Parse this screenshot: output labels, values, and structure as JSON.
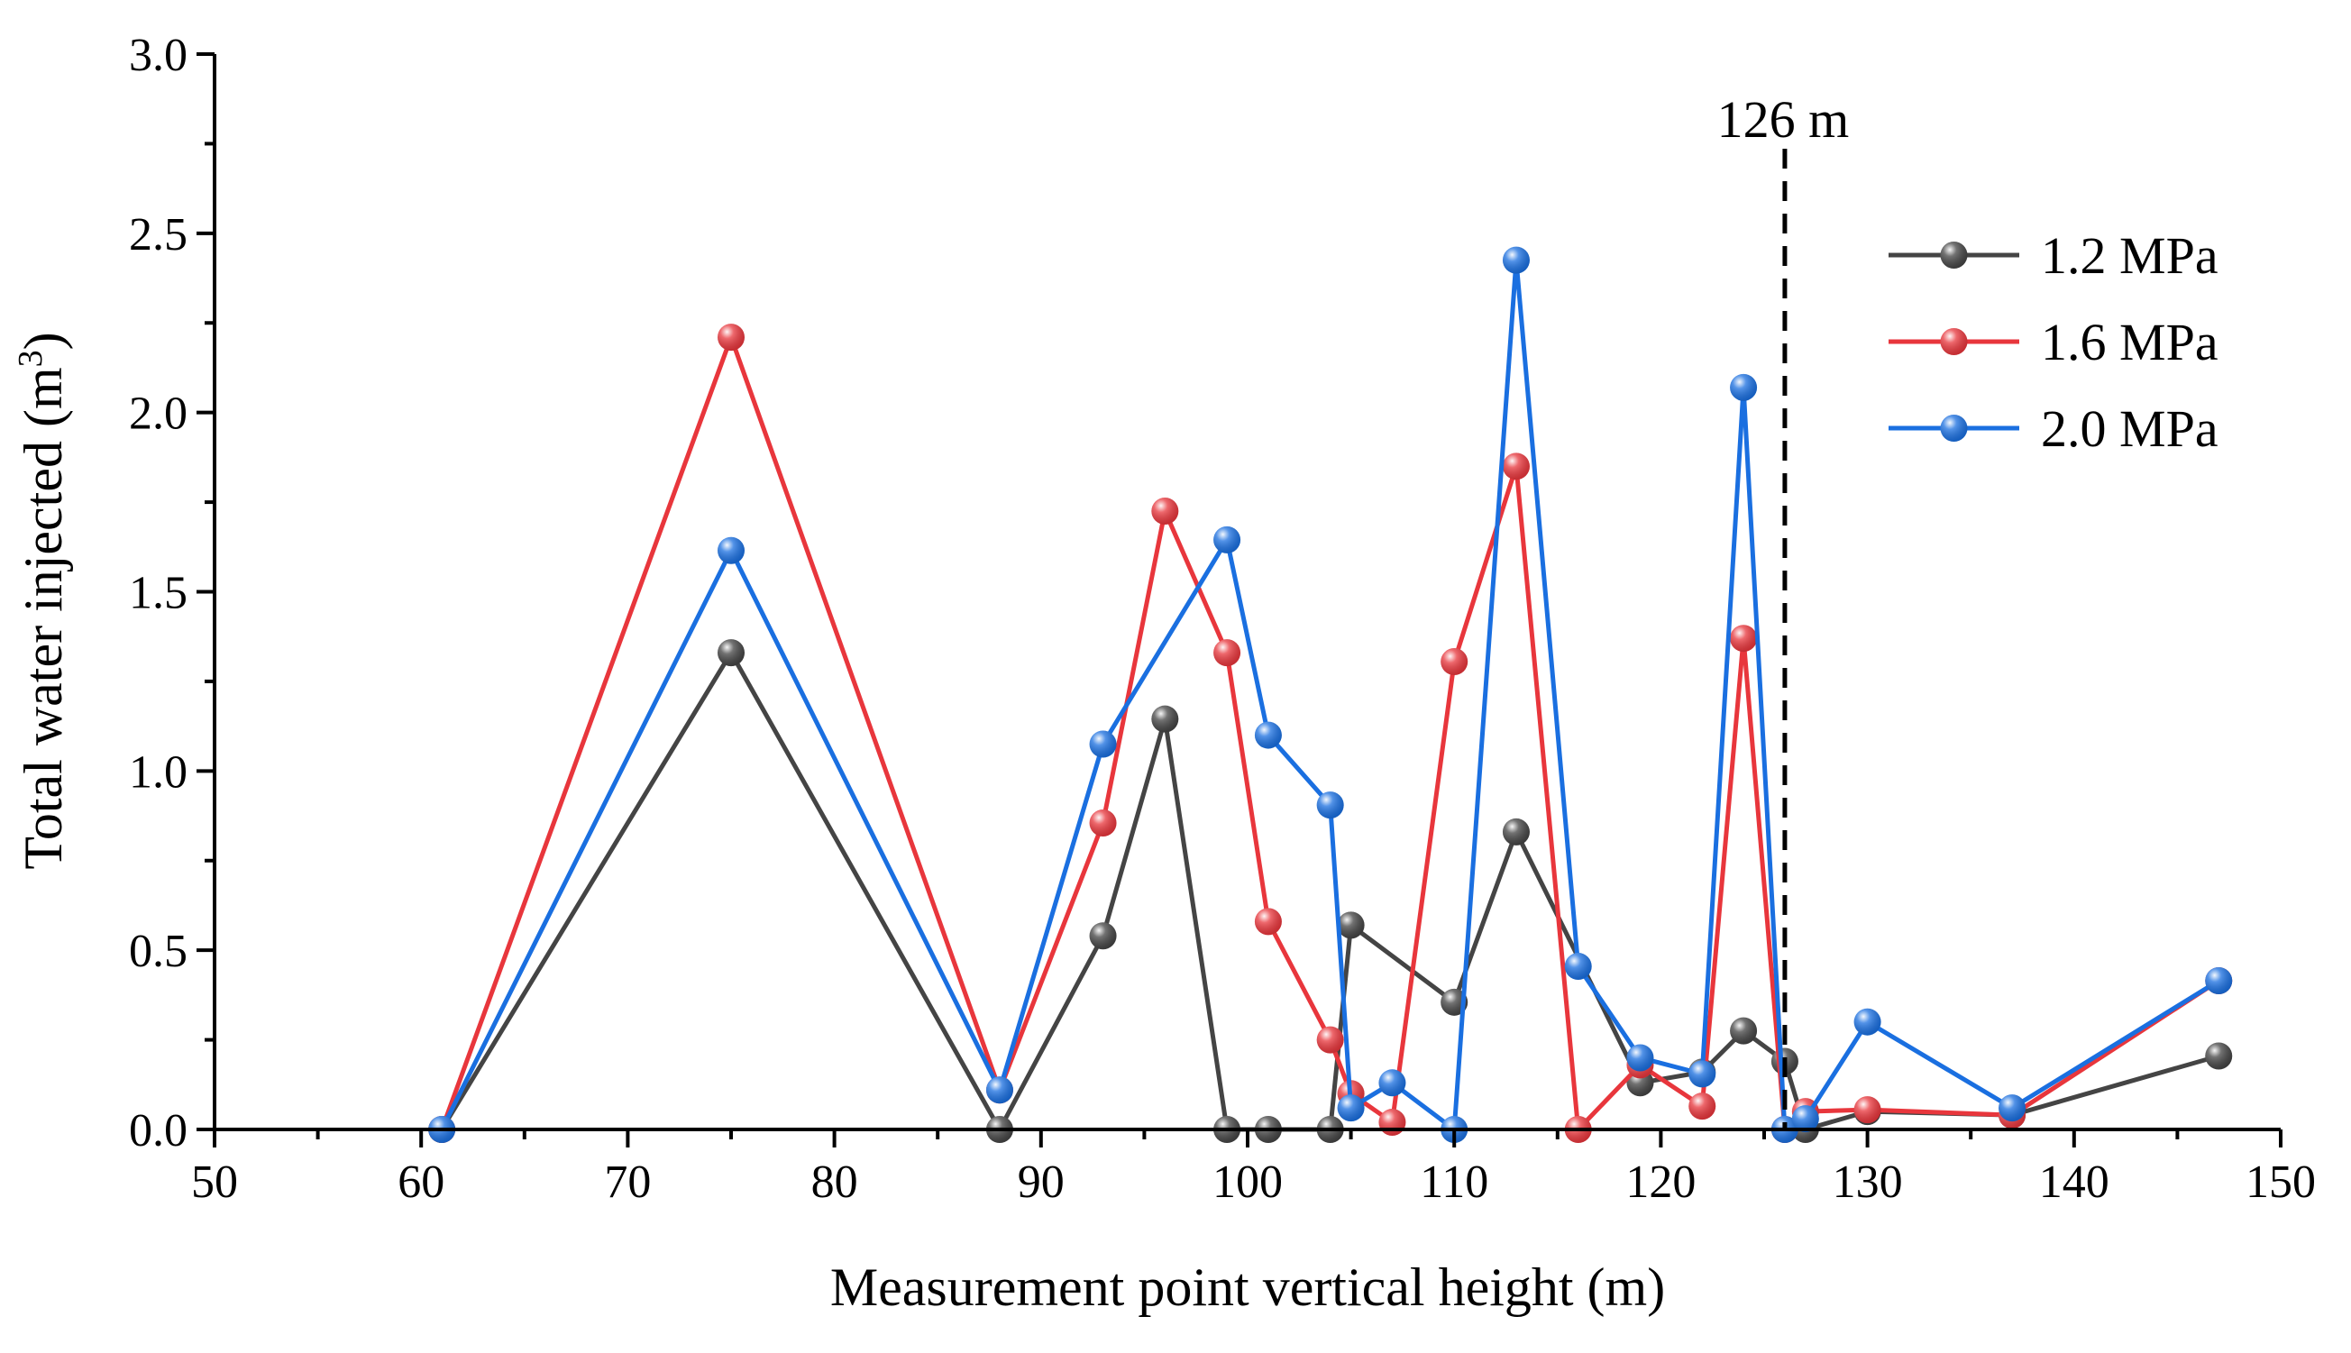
{
  "chart_data": {
    "type": "line",
    "title": "",
    "xlabel": "Measurement point vertical height (m)",
    "ylabel_main": "Total water injected (m",
    "ylabel_sup": "3",
    "ylabel_end": ")",
    "xlim": [
      50,
      150
    ],
    "ylim": [
      0.0,
      3.0
    ],
    "xticks": [
      50,
      60,
      70,
      80,
      90,
      100,
      110,
      120,
      130,
      140,
      150
    ],
    "xtick_labels": [
      "50",
      "60",
      "70",
      "80",
      "90",
      "100",
      "110",
      "120",
      "130",
      "140",
      "150"
    ],
    "yticks": [
      0.0,
      0.5,
      1.0,
      1.5,
      2.0,
      2.5,
      3.0
    ],
    "ytick_labels": [
      "0.0",
      "0.5",
      "1.0",
      "1.5",
      "2.0",
      "2.5",
      "3.0"
    ],
    "grid": false,
    "legend_position": "top-right",
    "annotation": {
      "x": 126,
      "label": "126 m",
      "style": "dashed-vertical-line"
    },
    "series": [
      {
        "name": "1.2 MPa",
        "color": "#444444",
        "x": [
          61,
          75,
          88,
          93,
          96,
          99,
          101,
          104,
          105,
          110,
          113,
          119,
          122,
          124,
          126,
          127,
          130,
          137,
          147
        ],
        "values": [
          0.0,
          1.33,
          0.0,
          0.54,
          1.145,
          0.0,
          0.0,
          0.0,
          0.57,
          0.355,
          0.83,
          0.13,
          0.16,
          0.275,
          0.19,
          0.0,
          0.05,
          0.04,
          0.205
        ]
      },
      {
        "name": "1.6 MPa",
        "color": "#e8363c",
        "x": [
          61,
          75,
          88,
          93,
          96,
          99,
          101,
          104,
          105,
          107,
          110,
          113,
          116,
          119,
          122,
          124,
          126,
          127,
          130,
          137,
          147
        ],
        "values": [
          0.0,
          2.21,
          0.11,
          0.855,
          1.725,
          1.33,
          0.58,
          0.25,
          0.1,
          0.02,
          1.305,
          1.85,
          0.0,
          0.18,
          0.065,
          1.37,
          0.0,
          0.05,
          0.055,
          0.04,
          0.415
        ]
      },
      {
        "name": "2.0 MPa",
        "color": "#1a6fe0",
        "x": [
          61,
          75,
          88,
          93,
          99,
          101,
          104,
          105,
          107,
          110,
          113,
          116,
          119,
          122,
          124,
          126,
          127,
          130,
          137,
          147
        ],
        "values": [
          0.0,
          1.615,
          0.11,
          1.075,
          1.645,
          1.1,
          0.905,
          0.06,
          0.13,
          0.0,
          2.425,
          0.455,
          0.2,
          0.155,
          2.07,
          0.0,
          0.03,
          0.3,
          0.06,
          0.415
        ]
      }
    ]
  }
}
